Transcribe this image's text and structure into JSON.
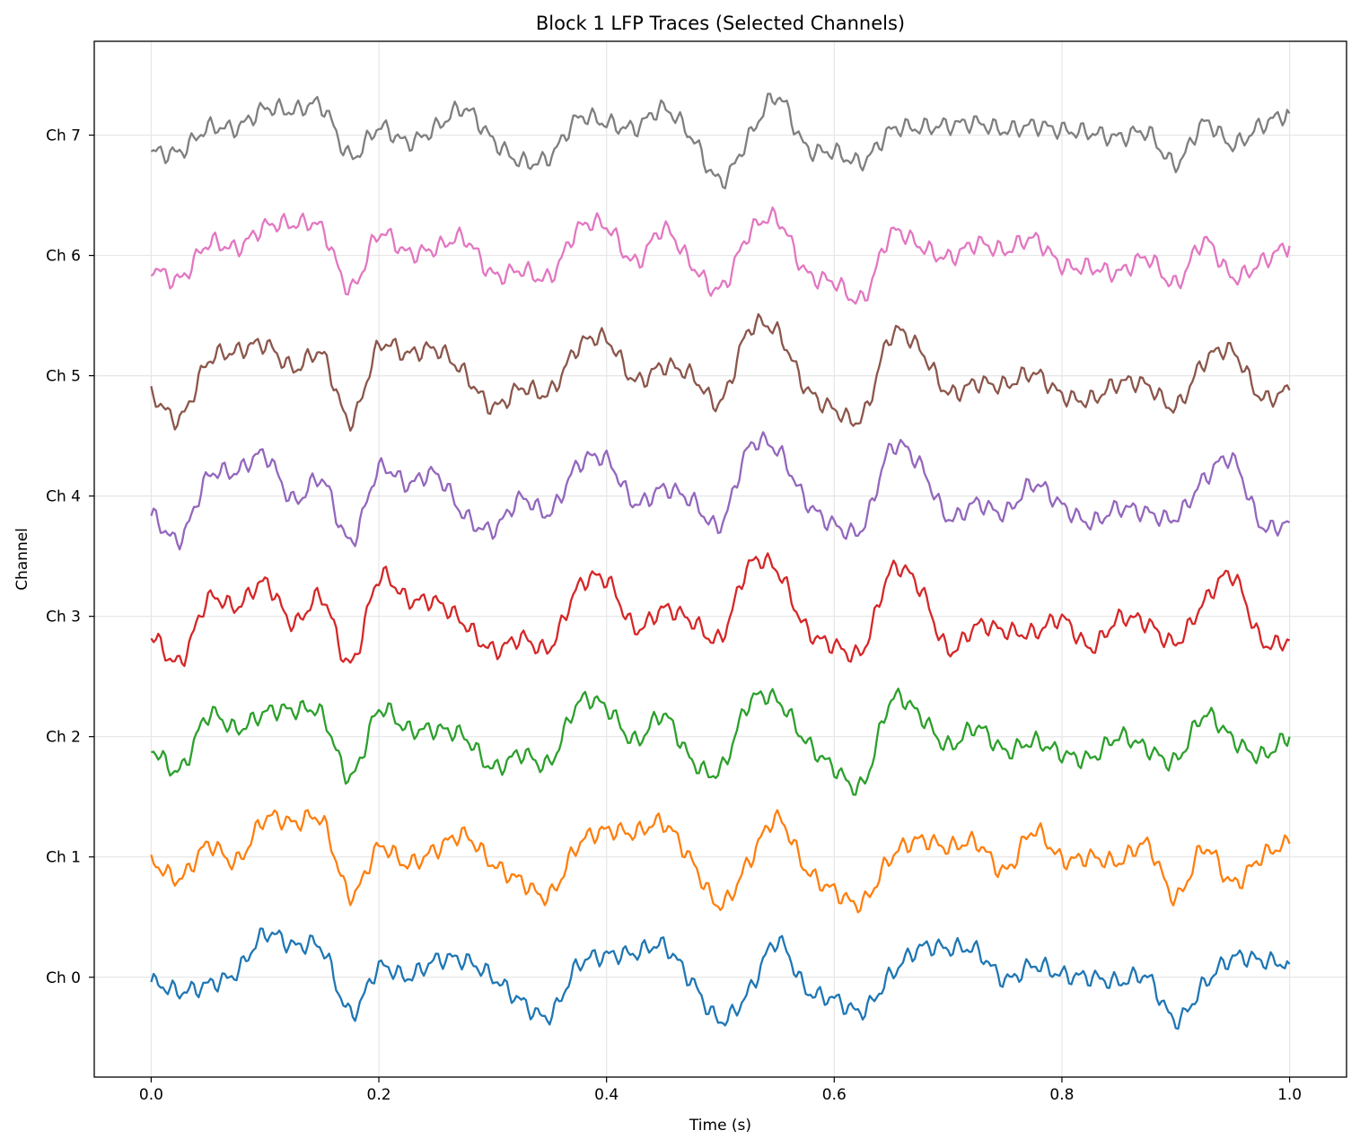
{
  "chart_data": {
    "type": "line",
    "title": "Block 1 LFP Traces (Selected Channels)",
    "xlabel": "Time (s)",
    "ylabel": "Channel",
    "xlim": [
      -0.05,
      1.05
    ],
    "ylim": [
      -0.83,
      7.78
    ],
    "xticks": [
      0.0,
      0.2,
      0.4,
      0.6,
      0.8,
      1.0
    ],
    "xtick_labels": [
      "0.0",
      "0.2",
      "0.4",
      "0.6",
      "0.8",
      "1.0"
    ],
    "yticks": [
      0,
      1,
      2,
      3,
      4,
      5,
      6,
      7
    ],
    "ytick_labels": [
      "Ch 0",
      "Ch 1",
      "Ch 2",
      "Ch 3",
      "Ch 4",
      "Ch 5",
      "Ch 6",
      "Ch 7"
    ],
    "grid": true,
    "legend": "none",
    "colors": [
      "#1f77b4",
      "#ff7f0e",
      "#2ca02c",
      "#d62728",
      "#9467bd",
      "#8c564b",
      "#e377c2",
      "#7f7f7f"
    ],
    "x": [
      0.0,
      0.025,
      0.05,
      0.075,
      0.1,
      0.125,
      0.15,
      0.175,
      0.2,
      0.225,
      0.25,
      0.275,
      0.3,
      0.325,
      0.35,
      0.375,
      0.4,
      0.425,
      0.45,
      0.475,
      0.5,
      0.525,
      0.55,
      0.575,
      0.6,
      0.625,
      0.65,
      0.675,
      0.7,
      0.725,
      0.75,
      0.775,
      0.8,
      0.825,
      0.85,
      0.875,
      0.9,
      0.925,
      0.95,
      0.975,
      1.0
    ],
    "series": [
      {
        "values": [
          -0.04,
          -0.12,
          -0.06,
          0.04,
          0.36,
          0.26,
          0.24,
          -0.3,
          0.08,
          0.0,
          0.14,
          0.14,
          0.0,
          -0.2,
          -0.32,
          0.1,
          0.18,
          0.2,
          0.26,
          -0.04,
          -0.36,
          -0.12,
          0.3,
          -0.1,
          -0.18,
          -0.28,
          0.02,
          0.24,
          0.24,
          0.22,
          -0.02,
          0.1,
          0.02,
          0.0,
          -0.04,
          0.0,
          -0.36,
          -0.06,
          0.16,
          0.14,
          0.11
        ]
      },
      {
        "values": [
          0.96,
          0.82,
          1.1,
          0.96,
          1.32,
          1.28,
          1.3,
          0.68,
          1.08,
          0.94,
          1.06,
          1.18,
          0.94,
          0.8,
          0.68,
          1.1,
          1.22,
          1.2,
          1.28,
          0.96,
          0.6,
          0.96,
          1.32,
          0.9,
          0.72,
          0.62,
          1.0,
          1.14,
          1.08,
          1.12,
          0.88,
          1.22,
          0.98,
          1.0,
          0.96,
          1.1,
          0.66,
          1.08,
          0.78,
          1.0,
          1.11
        ]
      },
      {
        "values": [
          1.9,
          1.72,
          2.18,
          2.06,
          2.2,
          2.22,
          2.18,
          1.66,
          2.22,
          2.06,
          2.06,
          2.0,
          1.74,
          1.86,
          1.78,
          2.28,
          2.24,
          1.96,
          2.18,
          1.8,
          1.72,
          2.28,
          2.3,
          1.96,
          1.74,
          1.6,
          2.3,
          2.18,
          1.92,
          2.08,
          1.88,
          1.96,
          1.86,
          1.82,
          2.0,
          1.9,
          1.8,
          2.18,
          1.98,
          1.84,
          2.0
        ]
      },
      {
        "values": [
          2.84,
          2.62,
          3.14,
          3.08,
          3.28,
          2.94,
          3.16,
          2.6,
          3.32,
          3.14,
          3.12,
          2.94,
          2.72,
          2.82,
          2.74,
          3.24,
          3.3,
          2.9,
          3.06,
          2.96,
          2.82,
          3.42,
          3.38,
          2.9,
          2.76,
          2.72,
          3.38,
          3.24,
          2.72,
          2.92,
          2.88,
          2.86,
          2.98,
          2.74,
          2.98,
          2.94,
          2.78,
          3.12,
          3.34,
          2.8,
          2.8
        ]
      },
      {
        "values": [
          3.84,
          3.64,
          4.16,
          4.2,
          4.34,
          3.96,
          4.14,
          3.62,
          4.22,
          4.1,
          4.18,
          3.84,
          3.72,
          3.98,
          3.86,
          4.26,
          4.3,
          3.94,
          4.06,
          3.96,
          3.76,
          4.4,
          4.38,
          3.96,
          3.76,
          3.74,
          4.4,
          4.26,
          3.82,
          3.94,
          3.86,
          4.1,
          3.92,
          3.78,
          3.9,
          3.86,
          3.82,
          4.14,
          4.3,
          3.76,
          3.78
        ]
      },
      {
        "values": [
          4.84,
          4.64,
          5.12,
          5.2,
          5.26,
          5.06,
          5.18,
          4.62,
          5.24,
          5.18,
          5.22,
          5.02,
          4.74,
          4.9,
          4.86,
          5.24,
          5.3,
          4.96,
          5.08,
          5.0,
          4.78,
          5.38,
          5.36,
          4.9,
          4.72,
          4.66,
          5.34,
          5.22,
          4.86,
          4.94,
          4.92,
          5.02,
          4.84,
          4.8,
          4.94,
          4.92,
          4.74,
          5.12,
          5.2,
          4.82,
          4.88
        ]
      },
      {
        "values": [
          5.9,
          5.8,
          6.1,
          6.06,
          6.24,
          6.26,
          6.22,
          5.72,
          6.18,
          6.02,
          6.06,
          6.14,
          5.84,
          5.88,
          5.82,
          6.22,
          6.24,
          5.94,
          6.22,
          5.92,
          5.72,
          6.18,
          6.3,
          5.86,
          5.78,
          5.64,
          6.18,
          6.08,
          5.98,
          6.1,
          6.04,
          6.14,
          5.92,
          5.9,
          5.86,
          5.98,
          5.76,
          6.12,
          5.82,
          5.94,
          6.08
        ]
      },
      {
        "values": [
          6.86,
          6.86,
          7.06,
          7.06,
          7.22,
          7.2,
          7.24,
          6.82,
          7.06,
          6.94,
          7.06,
          7.22,
          6.96,
          6.78,
          6.82,
          7.14,
          7.1,
          7.06,
          7.22,
          6.98,
          6.62,
          6.98,
          7.32,
          6.9,
          6.86,
          6.78,
          7.04,
          7.06,
          7.08,
          7.1,
          7.04,
          7.08,
          7.04,
          7.02,
          6.98,
          7.02,
          6.76,
          7.1,
          6.92,
          7.08,
          7.18
        ]
      }
    ]
  }
}
